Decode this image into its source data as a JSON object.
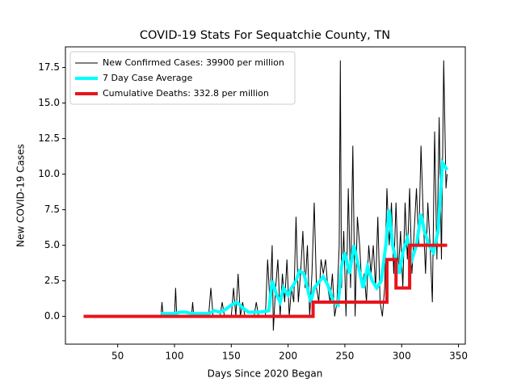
{
  "chart_data": {
    "type": "line",
    "title": "COVID-19 Stats For Sequatchie County, TN",
    "xlabel": "Days Since 2020 Began",
    "ylabel": "New COVID-19 Cases",
    "xlim": [
      4,
      356
    ],
    "ylim": [
      -1.95,
      18.95
    ],
    "xticks": [
      50,
      100,
      150,
      200,
      250,
      300,
      350
    ],
    "yticks": [
      {
        "value": 0,
        "label": "0.0"
      },
      2.5,
      {
        "value": 5,
        "label": "5.0"
      },
      7.5,
      {
        "value": 10,
        "label": "10.0"
      },
      12.5,
      {
        "value": 15,
        "label": "15.0"
      },
      17.5
    ],
    "legend": "upper left",
    "series": [
      {
        "name": "New Confirmed Cases: 39900 per million",
        "color": "#000000",
        "linewidth": 1,
        "x": [
          20,
          88,
          89,
          90,
          100,
          101,
          102,
          115,
          116,
          117,
          130,
          132,
          134,
          140,
          142,
          144,
          150,
          152,
          154,
          156,
          158,
          160,
          162,
          170,
          172,
          174,
          180,
          182,
          184,
          186,
          187,
          189,
          191,
          193,
          195,
          197,
          199,
          201,
          203,
          205,
          207,
          209,
          211,
          213,
          215,
          217,
          219,
          221,
          223,
          225,
          227,
          229,
          231,
          233,
          235,
          237,
          239,
          241,
          243,
          245,
          246,
          247,
          249,
          251,
          253,
          255,
          257,
          259,
          261,
          263,
          265,
          267,
          269,
          271,
          273,
          275,
          277,
          279,
          281,
          283,
          285,
          287,
          289,
          291,
          293,
          295,
          297,
          299,
          301,
          303,
          305,
          307,
          309,
          311,
          313,
          315,
          317,
          319,
          321,
          323,
          325,
          327,
          329,
          331,
          333,
          335,
          337,
          339,
          340
        ],
        "values": [
          0,
          0,
          1,
          0,
          0,
          2,
          0,
          0,
          1,
          0,
          0,
          2,
          0,
          0,
          1,
          0,
          0,
          2,
          0,
          3,
          0,
          1,
          0,
          0,
          1,
          0,
          0,
          4,
          1,
          5,
          -1,
          2,
          4,
          0,
          3,
          1,
          4,
          0,
          2,
          1,
          7,
          1,
          3,
          6,
          2,
          5,
          0,
          3,
          8,
          2,
          1,
          4,
          3,
          4,
          2,
          1,
          3,
          0,
          1,
          5,
          18,
          2,
          6,
          0,
          9,
          2,
          12,
          0,
          7,
          5,
          2,
          3,
          1,
          5,
          3,
          5,
          2,
          7,
          1,
          0,
          2,
          9,
          5,
          8,
          3,
          8,
          3,
          6,
          2,
          8,
          4,
          9,
          3,
          6,
          9,
          5,
          12,
          7,
          3,
          8,
          5,
          1,
          13,
          4,
          14,
          4,
          18,
          9,
          10
        ]
      },
      {
        "name": "7 Day Case Average",
        "color": "#00ffff",
        "linewidth": 4,
        "x": [
          88,
          100,
          105,
          110,
          115,
          125,
          130,
          135,
          140,
          145,
          150,
          155,
          160,
          165,
          175,
          183,
          186,
          190,
          193,
          196,
          200,
          203,
          207,
          210,
          214,
          217,
          220,
          223,
          227,
          231,
          235,
          240,
          244,
          247,
          250,
          254,
          258,
          262,
          266,
          270,
          274,
          278,
          282,
          286,
          289,
          292,
          295,
          298,
          301,
          305,
          309,
          313,
          317,
          320,
          324,
          328,
          332,
          336,
          340
        ],
        "values": [
          0.2,
          0.2,
          0.3,
          0.3,
          0.2,
          0.2,
          0.2,
          0.4,
          0.3,
          0.5,
          0.8,
          1.0,
          0.6,
          0.3,
          0.3,
          0.4,
          2.5,
          1.5,
          1.0,
          2.0,
          1.5,
          2.0,
          2.5,
          3.2,
          3.0,
          2.0,
          1.0,
          2.0,
          2.4,
          2.8,
          2.2,
          1.0,
          0.8,
          3.5,
          4.5,
          3.0,
          5.0,
          3.5,
          2.0,
          3.5,
          2.5,
          2.0,
          2.5,
          5.0,
          7.5,
          5.0,
          4.0,
          3.0,
          4.5,
          5.5,
          4.0,
          5.0,
          7.2,
          6.0,
          5.0,
          4.5,
          6.0,
          10.8,
          10.3
        ]
      },
      {
        "name": "Cumulative Deaths: 332.8 per million",
        "color": "#e8141c",
        "linewidth": 4,
        "x": [
          20,
          222,
          222,
          287,
          287,
          295,
          295,
          307,
          307,
          340
        ],
        "values": [
          0,
          0,
          1,
          1,
          4,
          4,
          2,
          2,
          5,
          5
        ]
      }
    ]
  }
}
